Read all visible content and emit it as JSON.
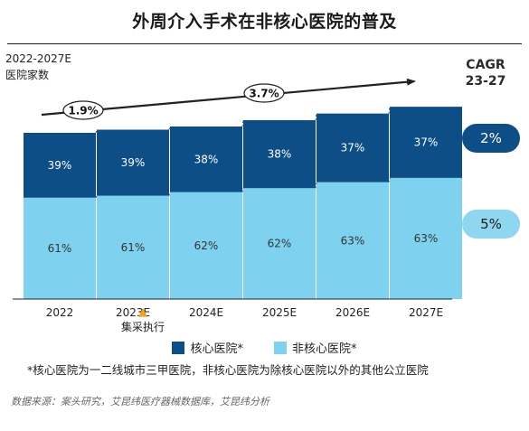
{
  "title": "外周介入手术在非核心医院的普及",
  "subtitle_line1": "2022-2027E",
  "subtitle_line2": "医院家数",
  "cagr_label_line1": "CAGR",
  "cagr_label_line2": "23-27",
  "cagr_values": {
    "core": "2%",
    "noncore": "5%"
  },
  "annotation": {
    "symbol": "▲",
    "text": "集采执行"
  },
  "growth_labels": [
    "1.9%",
    "3.7%"
  ],
  "footnote": "*核心医院为一二线城市三甲医院，非核心医院为除核心医院以外的其他公立医院",
  "source": "数据来源：案头研究，艾昆纬医疗器械数据库，艾昆纬分析",
  "colors": {
    "core": "#0d4e87",
    "noncore": "#7fd2ef",
    "pill_core": "#0d4e87",
    "pill_noncore": "#8fd6f1",
    "annotation": "#f5a01a"
  },
  "chart_data": {
    "type": "bar",
    "stacked": true,
    "percent": true,
    "categories": [
      "2022",
      "2023E",
      "2024E",
      "2025E",
      "2026E",
      "2027E"
    ],
    "series": [
      {
        "name": "非核心医院*",
        "values": [
          61,
          61,
          62,
          62,
          63,
          63
        ],
        "labels": [
          "61%",
          "61%",
          "62%",
          "62%",
          "63%",
          "63%"
        ]
      },
      {
        "name": "核心医院*",
        "values": [
          39,
          39,
          38,
          38,
          37,
          37
        ],
        "labels": [
          "39%",
          "39%",
          "38%",
          "38%",
          "37%",
          "37%"
        ]
      }
    ],
    "relative_total": [
      100,
      101.9,
      103.8,
      107.6,
      111.6,
      115.7
    ]
  }
}
